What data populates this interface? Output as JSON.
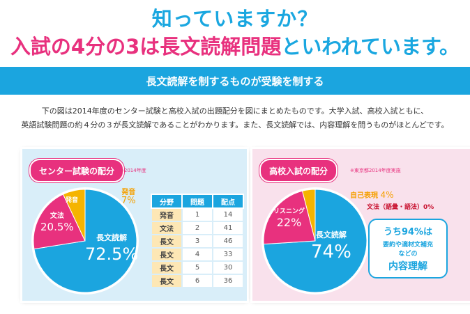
{
  "header": {
    "line1": "知っていますか？",
    "line2_pink": "入試の4分の3は長文読解問題",
    "line2_blue": "といわれています。"
  },
  "banner": {
    "text": "長文読解を制するものが受験を制する"
  },
  "intro": {
    "line1": "下の図は2014年度のセンター試験と高校入試の出題配分を図にまとめたものです。大学入試、高校入試ともに、",
    "line2": "英語試験問題の約４分の３が長文読解であることがわかります。また、長文読解では、内容理解を問うものがほとんどです。"
  },
  "center_exam": {
    "title": "センター試験の配分",
    "note": "※2014年度",
    "slices": [
      {
        "label": "長文読解",
        "value_text": "72.5%",
        "value": 72.5,
        "color": "#1ba5df"
      },
      {
        "label": "文法",
        "value_text": "20.5%",
        "value": 20.5,
        "color": "#e8317e"
      },
      {
        "label": "発音",
        "value_text": "7%",
        "value": 7,
        "color": "#f5b400"
      }
    ],
    "table": {
      "headers": [
        "分野",
        "問題",
        "配点"
      ],
      "rows": [
        [
          "発音",
          "1",
          "14"
        ],
        [
          "文法",
          "2",
          "41"
        ],
        [
          "長文",
          "3",
          "46"
        ],
        [
          "長文",
          "4",
          "33"
        ],
        [
          "長文",
          "5",
          "30"
        ],
        [
          "長文",
          "6",
          "36"
        ]
      ]
    }
  },
  "hs_exam": {
    "title": "高校入試の配分",
    "note": "※東京都2014年度実施",
    "slices": [
      {
        "label": "長文読解",
        "value_text": "74%",
        "value": 74,
        "color": "#1ba5df"
      },
      {
        "label": "リスニング",
        "value_text": "22%",
        "value": 22,
        "color": "#e8317e"
      },
      {
        "label": "自己表現",
        "value_text": "4%",
        "value": 4,
        "color": "#f5b400"
      },
      {
        "label": "文法（語彙・語法）",
        "value_text": "0%",
        "value": 0,
        "color": "#c8102e"
      }
    ],
    "callout": {
      "line1": "うち94%は",
      "line2": "要約や適材文補充",
      "line3": "などの",
      "line4": "内容理解"
    }
  }
}
